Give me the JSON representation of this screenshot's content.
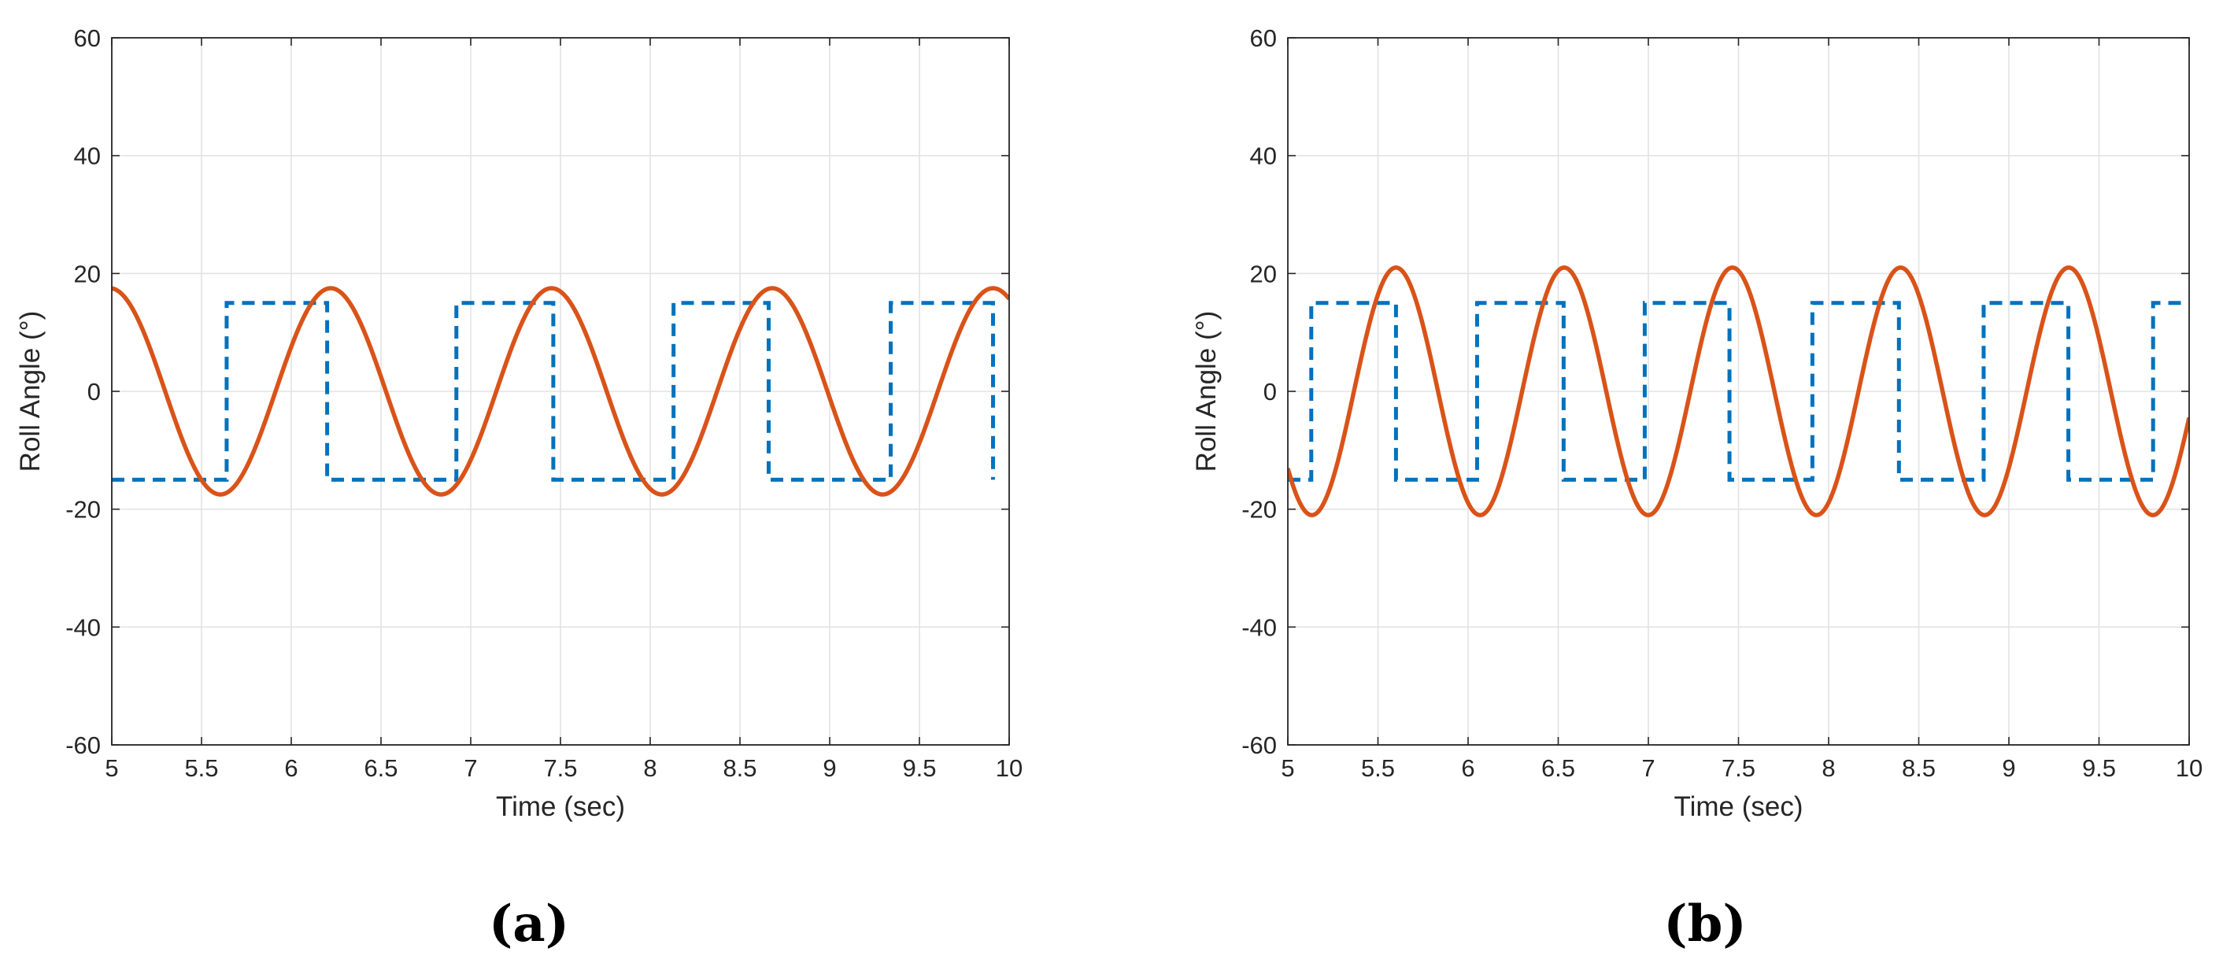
{
  "chart_data": [
    {
      "type": "line",
      "panel_label": "(a)",
      "xlabel": "Time (sec)",
      "ylabel": "Roll Angle (°)",
      "xlim": [
        5,
        10
      ],
      "ylim": [
        -60,
        60
      ],
      "xticks": [
        5,
        5.5,
        6,
        6.5,
        7,
        7.5,
        8,
        8.5,
        9,
        9.5,
        10
      ],
      "yticks": [
        -60,
        -40,
        -20,
        0,
        20,
        40,
        60
      ],
      "grid": true,
      "legend": null,
      "series": [
        {
          "style": "dashed",
          "color": "#0072BD",
          "kind": "square-wave",
          "x": [
            5.0,
            5.64,
            5.64,
            6.2,
            6.2,
            6.92,
            6.92,
            7.46,
            7.46,
            8.13,
            8.13,
            8.66,
            8.66,
            9.34,
            9.34,
            9.91,
            9.91
          ],
          "y": [
            -15,
            -15,
            15,
            15,
            -15,
            -15,
            15,
            15,
            -15,
            -15,
            15,
            15,
            -15,
            -15,
            15,
            15,
            -15
          ]
        },
        {
          "style": "solid",
          "color": "#D95319",
          "kind": "sinusoid",
          "amplitude": 17.5,
          "period": 1.23,
          "peak_times": [
            6.22,
            7.46,
            8.68,
            9.91
          ],
          "trough_times": [
            5.57,
            6.86,
            8.06,
            9.31
          ],
          "x_range": [
            5,
            10
          ]
        }
      ]
    },
    {
      "type": "line",
      "panel_label": "(b)",
      "xlabel": "Time (sec)",
      "ylabel": "Roll Angle (°)",
      "xlim": [
        5,
        10
      ],
      "ylim": [
        -60,
        60
      ],
      "xticks": [
        5,
        5.5,
        6,
        6.5,
        7,
        7.5,
        8,
        8.5,
        9,
        9.5,
        10
      ],
      "yticks": [
        -60,
        -40,
        -20,
        0,
        20,
        40,
        60
      ],
      "grid": true,
      "legend": null,
      "series": [
        {
          "style": "dashed",
          "color": "#0072BD",
          "kind": "square-wave",
          "x": [
            5.0,
            5.13,
            5.13,
            5.6,
            5.6,
            6.05,
            6.05,
            6.53,
            6.53,
            6.98,
            6.98,
            7.45,
            7.45,
            7.91,
            7.91,
            8.39,
            8.39,
            8.86,
            8.86,
            9.33,
            9.33,
            9.8,
            9.8,
            10.0
          ],
          "y": [
            -15,
            -15,
            15,
            15,
            -15,
            -15,
            15,
            15,
            -15,
            -15,
            15,
            15,
            -15,
            -15,
            15,
            15,
            -15,
            -15,
            15,
            15,
            -15,
            -15,
            15,
            15
          ]
        },
        {
          "style": "solid",
          "color": "#D95319",
          "kind": "sinusoid",
          "amplitude": 21,
          "period": 0.933,
          "peak_times": [
            5.6,
            6.53,
            7.45,
            8.39,
            9.33
          ],
          "trough_times": [
            5.12,
            6.05,
            6.98,
            7.91,
            8.86,
            9.8
          ],
          "x_range": [
            5,
            10
          ]
        }
      ]
    }
  ]
}
